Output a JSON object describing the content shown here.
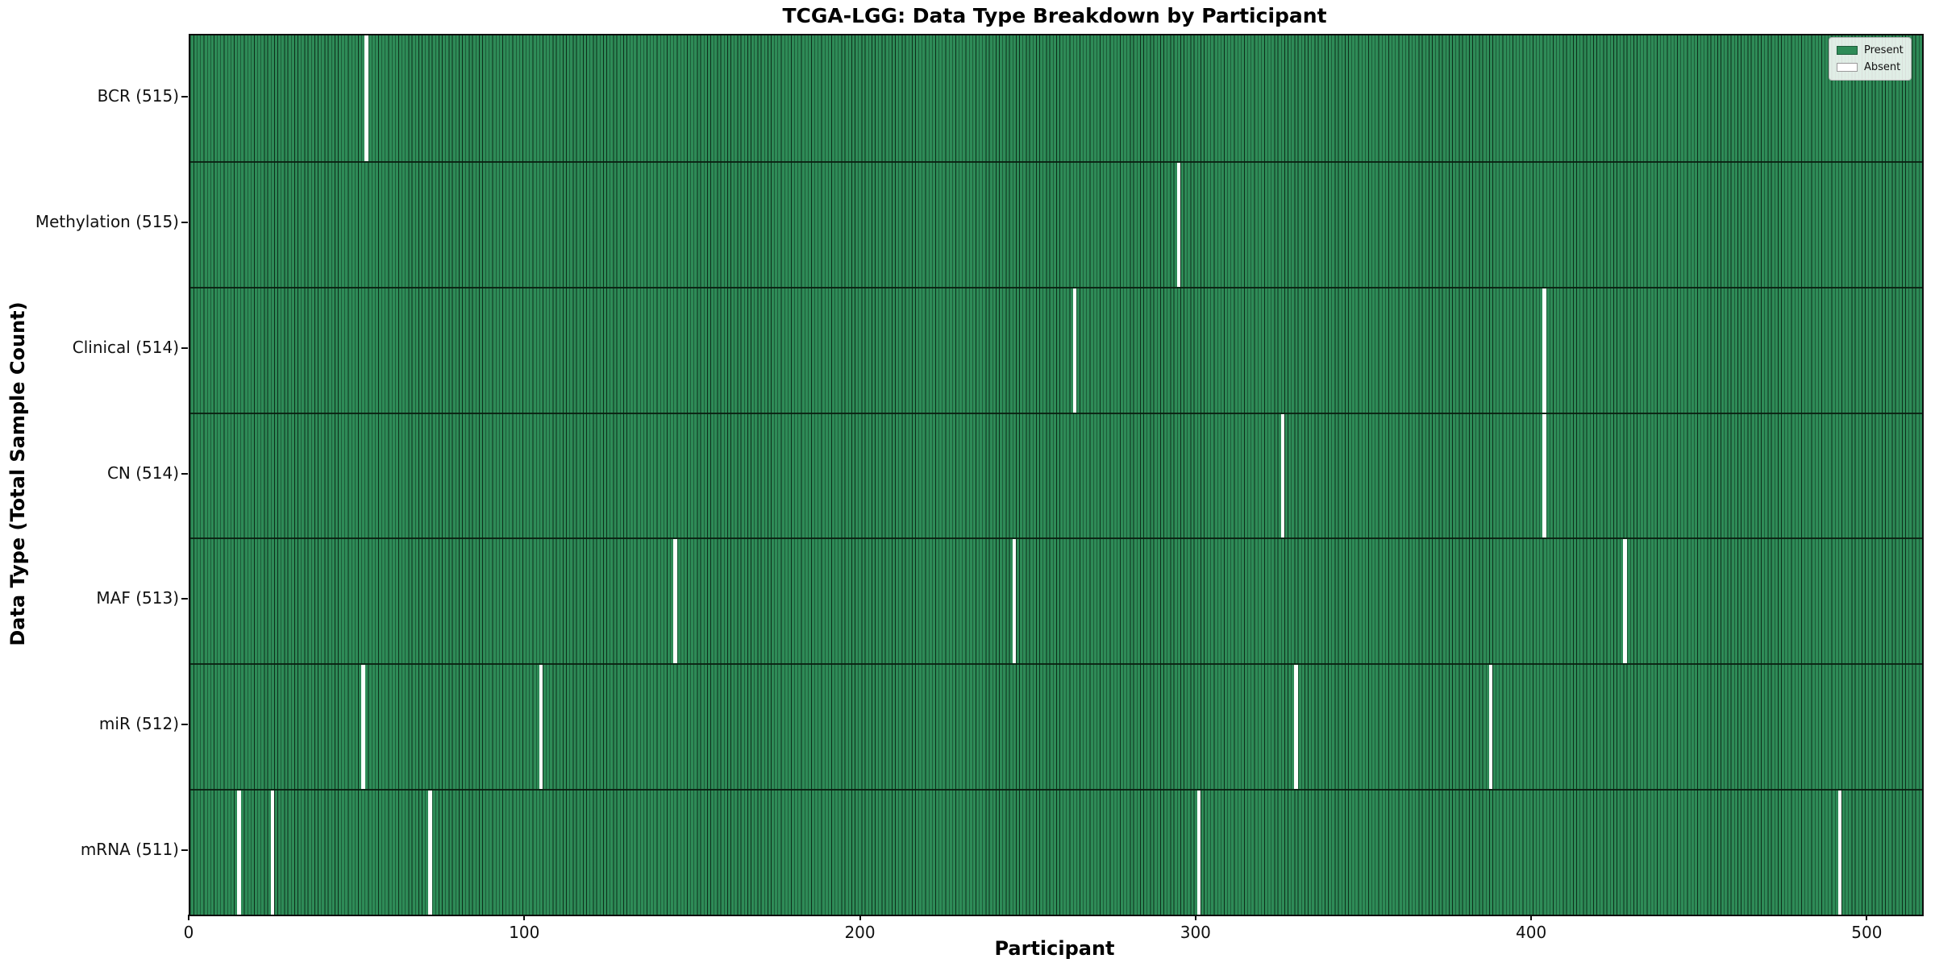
{
  "title": "TCGA-LGG: Data Type Breakdown by Participant",
  "chart_data": {
    "type": "heatmap",
    "title": "TCGA-LGG: Data Type Breakdown by Participant",
    "xlabel": "Participant",
    "ylabel": "Data Type (Total Sample Count)",
    "x_ticks": [
      0,
      100,
      200,
      300,
      400,
      500
    ],
    "xlim": [
      0,
      516
    ],
    "n_participants": 516,
    "grid": false,
    "legend_position": "upper right",
    "legend": {
      "entries": [
        {
          "label": "Present",
          "color": "#2e8b57"
        },
        {
          "label": "Absent",
          "color": "#ffffff"
        }
      ]
    },
    "colors": {
      "present": "#2e8b57",
      "absent": "#ffffff",
      "bar_edge": "#092615"
    },
    "rows": [
      {
        "label": "BCR (515)",
        "data_type": "BCR",
        "total": 515,
        "absent_participants": [
          52
        ]
      },
      {
        "label": "Methylation (515)",
        "data_type": "Methylation",
        "total": 515,
        "absent_participants": [
          294
        ]
      },
      {
        "label": "Clinical (514)",
        "data_type": "Clinical",
        "total": 514,
        "absent_participants": [
          263,
          403
        ]
      },
      {
        "label": "CN (514)",
        "data_type": "CN",
        "total": 514,
        "absent_participants": [
          325,
          403
        ]
      },
      {
        "label": "MAF (513)",
        "data_type": "MAF",
        "total": 513,
        "absent_participants": [
          144,
          245,
          427
        ]
      },
      {
        "label": "miR (512)",
        "data_type": "miR",
        "total": 512,
        "absent_participants": [
          51,
          104,
          329,
          387
        ]
      },
      {
        "label": "mRNA (511)",
        "data_type": "mRNA",
        "total": 511,
        "absent_participants": [
          14,
          24,
          71,
          300,
          491
        ]
      }
    ]
  }
}
